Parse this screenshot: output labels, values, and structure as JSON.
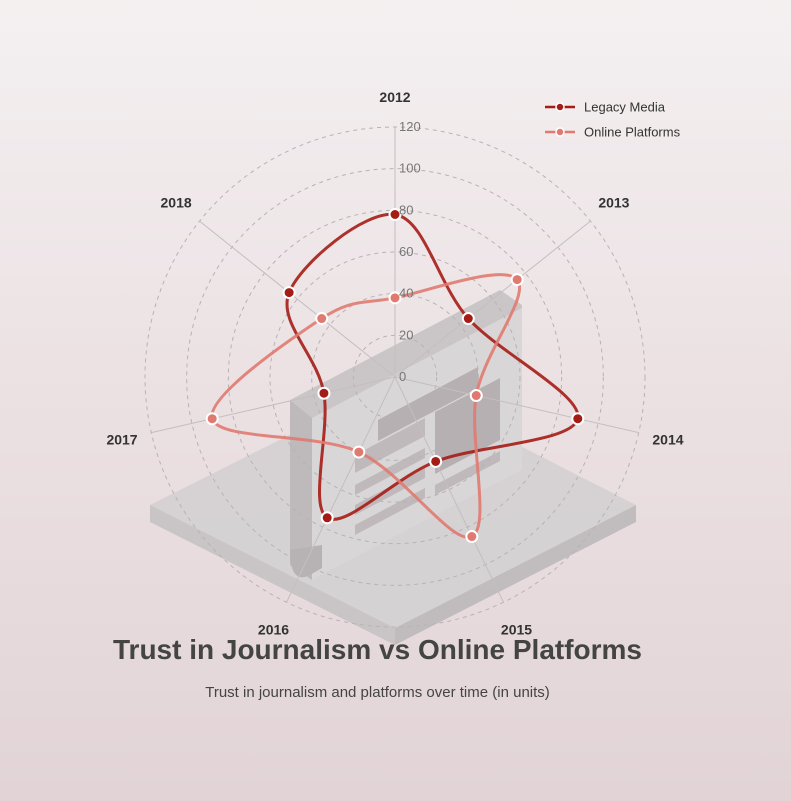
{
  "chart_data": {
    "type": "radar",
    "title": "Trust in Journalism vs Online Platforms",
    "subtitle": "Trust in journalism and platforms over time (in units)",
    "categories": [
      "2012",
      "2013",
      "2014",
      "2015",
      "2016",
      "2017",
      "2018"
    ],
    "radial_ticks": [
      "0",
      "20",
      "40",
      "60",
      "80",
      "100",
      "120"
    ],
    "rlim": [
      0,
      120
    ],
    "grid": true,
    "legend_position": "top-right",
    "series": [
      {
        "name": "Legacy Media",
        "color": "#a51c16",
        "values": [
          78,
          45,
          90,
          45,
          75,
          35,
          65
        ]
      },
      {
        "name": "Online Platforms",
        "color": "#e07a70",
        "values": [
          38,
          75,
          40,
          85,
          40,
          90,
          45
        ]
      }
    ],
    "background_illustration": "newspaper-icon"
  }
}
